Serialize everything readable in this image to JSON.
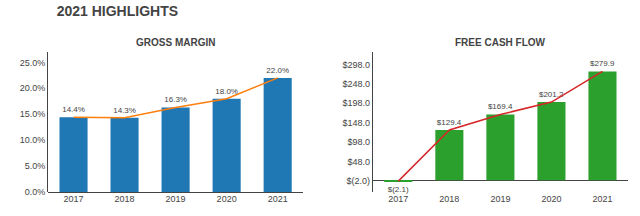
{
  "title": "2021 HIGHLIGHTS",
  "chart_data": [
    {
      "type": "bar",
      "title": "GROSS MARGIN",
      "categories": [
        "2017",
        "2018",
        "2019",
        "2020",
        "2021"
      ],
      "series": [
        {
          "type": "bar",
          "values": [
            14.4,
            14.3,
            16.3,
            18.0,
            22.0
          ],
          "value_labels": [
            "14.4%",
            "14.3%",
            "16.3%",
            "18.0%",
            "22.0%"
          ]
        },
        {
          "type": "line",
          "values": [
            14.4,
            14.3,
            16.3,
            18.0,
            22.0
          ]
        }
      ],
      "data_labels": true,
      "ylim": [
        0,
        27
      ],
      "yticks": [
        {
          "value": 0,
          "label": "0.0%"
        },
        {
          "value": 5.0,
          "label": "5.0%"
        },
        {
          "value": 10.0,
          "label": "10.0%"
        },
        {
          "value": 15.0,
          "label": "15.0%"
        },
        {
          "value": 20.0,
          "label": "20.0%"
        },
        {
          "value": 25.0,
          "label": "25.0%"
        }
      ],
      "grid": false
    },
    {
      "type": "bar",
      "title": "FREE CASH FLOW",
      "categories": [
        "2017",
        "2018",
        "2019",
        "2020",
        "2021"
      ],
      "series": [
        {
          "type": "bar",
          "values": [
            -2.1,
            129.4,
            169.4,
            201.2,
            279.9
          ],
          "value_labels": [
            "$(2.1)",
            "$129.4",
            "$169.4",
            "$201.2",
            "$279.9"
          ]
        },
        {
          "type": "line",
          "values": [
            -2.1,
            129.4,
            169.4,
            201.2,
            279.9
          ]
        }
      ],
      "data_labels": true,
      "ylim": [
        -30,
        330
      ],
      "yticks": [
        {
          "value": -2.0,
          "label": "$(2.0)"
        },
        {
          "value": 48.0,
          "label": "$48.0"
        },
        {
          "value": 98.0,
          "label": "$98.0"
        },
        {
          "value": 148.0,
          "label": "$148.0"
        },
        {
          "value": 198.0,
          "label": "$198.0"
        },
        {
          "value": 248.0,
          "label": "$248.0"
        },
        {
          "value": 298.0,
          "label": "$298.0"
        }
      ],
      "grid": false
    }
  ]
}
